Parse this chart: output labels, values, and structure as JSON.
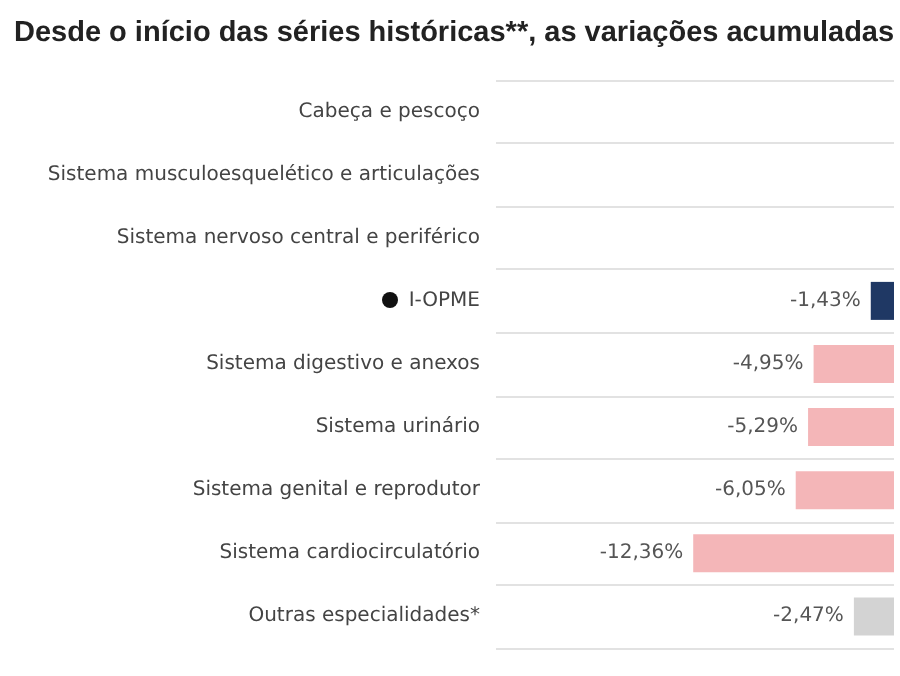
{
  "chart_data": {
    "type": "bar",
    "orientation": "horizontal",
    "title": "Desde o início das séries históricas**, as variações acumuladas",
    "categories": [
      "Cabeça e pescoço",
      "Sistema musculoesquelético e articulações",
      "Sistema nervoso central e periférico",
      "I-OPME",
      "Sistema digestivo e anexos",
      "Sistema urinário",
      "Sistema genital e reprodutor",
      "Sistema cardiocirculatório",
      "Outras especialidades*"
    ],
    "values": [
      null,
      null,
      null,
      -1.43,
      -4.95,
      -5.29,
      -6.05,
      -12.36,
      -2.47
    ],
    "colors": [
      "#f4b6b8",
      "#f4b6b8",
      "#f4b6b8",
      "#1f3864",
      "#f4b6b8",
      "#f4b6b8",
      "#f4b6b8",
      "#f4b6b8",
      "#d3d3d3"
    ],
    "value_labels": [
      null,
      null,
      null,
      "-1,43%",
      "-4,95%",
      "-5,29%",
      "-6,05%",
      "-12,36%",
      "-2,47%"
    ],
    "xlim": [
      -24.5,
      0
    ],
    "grid": "y",
    "tick_labels": "y"
  }
}
